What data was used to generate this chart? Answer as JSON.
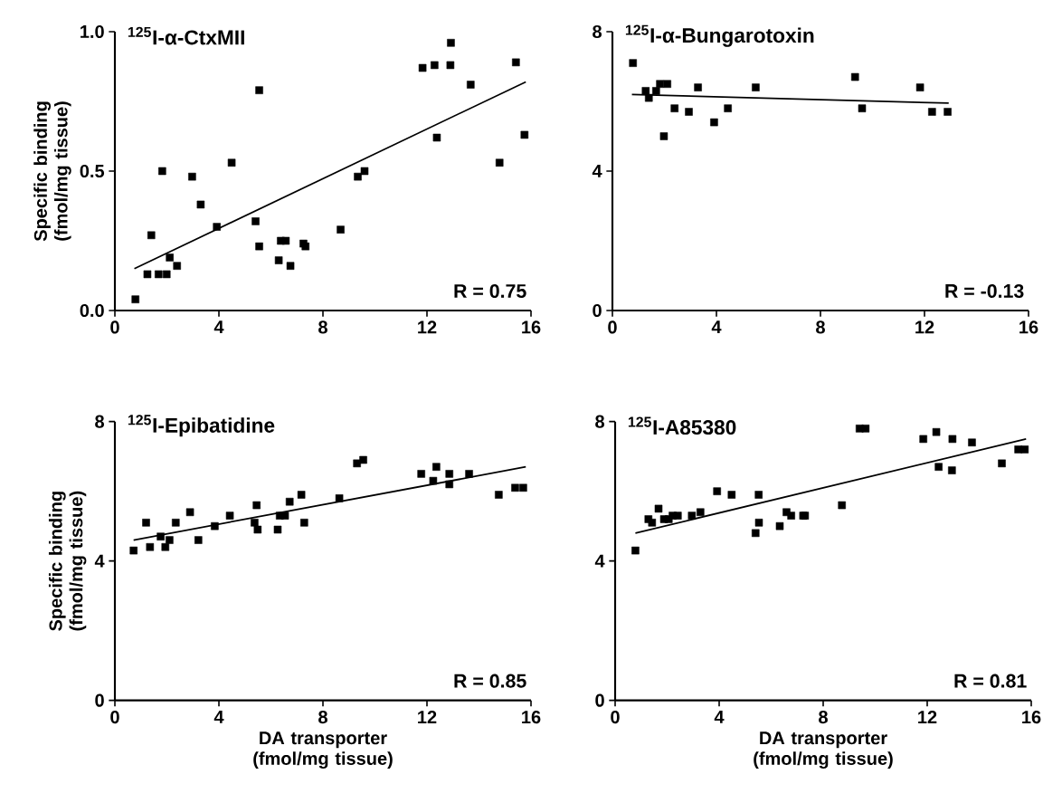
{
  "chart_data": [
    {
      "type": "scatter",
      "title": "$^{125}$I-α-CtxMII",
      "ylabel": "Specific binding (fmol/mg tissue)",
      "annotations": [
        "R = 0.75"
      ],
      "xlim": [
        0,
        16
      ],
      "xticks": [
        0,
        4,
        8,
        12,
        16
      ],
      "ylim": [
        0,
        1
      ],
      "yticks": [
        {
          "value": 0,
          "label": "0.0"
        },
        {
          "value": 0.5,
          "label": "0.5"
        },
        {
          "value": 1,
          "label": "1.0"
        }
      ],
      "series": [
        {
          "marker": "square",
          "color": "#000000",
          "x": [
            0.79,
            1.25,
            1.4,
            1.68,
            1.99,
            1.82,
            2.11,
            2.39,
            2.97,
            3.3,
            3.92,
            4.49,
            5.41,
            5.55,
            5.55,
            6.3,
            6.38,
            6.57,
            6.75,
            7.25,
            7.33,
            8.68,
            9.34,
            9.6,
            11.83,
            12.29,
            12.9,
            12.92,
            12.38,
            13.68,
            14.79,
            15.42,
            15.75
          ],
          "values": [
            0.04,
            0.13,
            0.27,
            0.13,
            0.13,
            0.5,
            0.19,
            0.16,
            0.48,
            0.38,
            0.3,
            0.53,
            0.32,
            0.23,
            0.79,
            0.18,
            0.25,
            0.25,
            0.16,
            0.24,
            0.23,
            0.29,
            0.48,
            0.5,
            0.87,
            0.88,
            0.88,
            0.96,
            0.62,
            0.81,
            0.53,
            0.89,
            0.63
          ]
        },
        {
          "type": "line",
          "marker": "none",
          "color": "#000000",
          "x": [
            0.75,
            15.8
          ],
          "values": [
            0.15,
            0.82
          ]
        }
      ]
    },
    {
      "type": "scatter",
      "title": "$^{125}$I-α-Bungarotoxin",
      "annotations": [
        "R = -0.13"
      ],
      "xlim": [
        0,
        16
      ],
      "xticks": [
        0,
        4,
        8,
        12,
        16
      ],
      "ylim": [
        0,
        8
      ],
      "yticks": [
        0,
        4,
        8
      ],
      "series": [
        {
          "marker": "square",
          "color": "#000000",
          "x": [
            0.79,
            1.28,
            1.4,
            1.68,
            1.83,
            2.11,
            1.98,
            2.39,
            2.94,
            3.29,
            3.91,
            4.44,
            5.51,
            9.33,
            9.6,
            11.83,
            12.29,
            12.89
          ],
          "values": [
            7.1,
            6.3,
            6.1,
            6.3,
            6.5,
            6.5,
            5.0,
            5.8,
            5.7,
            6.4,
            5.4,
            5.8,
            6.4,
            6.7,
            5.8,
            6.4,
            5.7,
            5.7
          ]
        },
        {
          "type": "line",
          "marker": "none",
          "color": "#000000",
          "x": [
            0.75,
            12.93
          ],
          "values": [
            6.2,
            5.95
          ]
        }
      ]
    },
    {
      "type": "scatter",
      "title": "$^{125}$I-Epibatidine",
      "ylabel": "Specific binding (fmol/mg tissue)",
      "xlabel": "DA transporter (fmol/mg tissue)",
      "annotations": [
        "R = 0.85"
      ],
      "xlim": [
        0,
        16
      ],
      "xticks": [
        0,
        4,
        8,
        12,
        16
      ],
      "ylim": [
        0,
        8
      ],
      "yticks": [
        0,
        4,
        8
      ],
      "series": [
        {
          "marker": "square",
          "color": "#000000",
          "x": [
            0.72,
            1.2,
            1.35,
            1.76,
            1.94,
            2.1,
            2.34,
            2.89,
            3.21,
            3.84,
            4.42,
            5.37,
            5.45,
            5.49,
            6.26,
            6.34,
            6.54,
            6.72,
            7.17,
            7.28,
            8.63,
            9.31,
            9.55,
            11.78,
            12.24,
            12.36,
            12.86,
            12.86,
            13.62,
            14.76,
            15.39,
            15.7
          ],
          "values": [
            4.3,
            5.1,
            4.4,
            4.7,
            4.4,
            4.6,
            5.1,
            5.4,
            4.6,
            5.0,
            5.3,
            5.1,
            5.6,
            4.9,
            4.9,
            5.3,
            5.3,
            5.7,
            5.9,
            5.1,
            5.8,
            6.8,
            6.9,
            6.5,
            6.3,
            6.7,
            6.5,
            6.2,
            6.5,
            5.9,
            6.1,
            6.1
          ]
        },
        {
          "type": "line",
          "marker": "none",
          "color": "#000000",
          "x": [
            0.72,
            15.8
          ],
          "values": [
            4.6,
            6.7
          ]
        }
      ]
    },
    {
      "type": "scatter",
      "title": "$^{125}$I-A85380",
      "xlabel": "DA transporter (fmol/mg tissue)",
      "annotations": [
        "R = 0.81"
      ],
      "xlim": [
        0,
        16
      ],
      "xticks": [
        0,
        4,
        8,
        12,
        16
      ],
      "ylim": [
        0,
        8
      ],
      "yticks": [
        0,
        4,
        8
      ],
      "series": [
        {
          "marker": "square",
          "color": "#000000",
          "x": [
            0.78,
            1.28,
            1.42,
            1.67,
            1.88,
            2.06,
            2.21,
            2.41,
            2.95,
            3.28,
            3.92,
            4.48,
            5.4,
            5.52,
            5.53,
            6.33,
            6.59,
            6.77,
            7.23,
            7.3,
            8.72,
            9.4,
            9.63,
            11.85,
            12.35,
            12.44,
            12.97,
            12.95,
            13.72,
            14.87,
            15.5,
            15.75
          ],
          "values": [
            4.3,
            5.2,
            5.1,
            5.5,
            5.2,
            5.2,
            5.3,
            5.3,
            5.3,
            5.4,
            6.0,
            5.9,
            4.8,
            5.9,
            5.1,
            5.0,
            5.4,
            5.3,
            5.3,
            5.3,
            5.6,
            7.8,
            7.8,
            7.5,
            7.7,
            6.7,
            7.5,
            6.6,
            7.4,
            6.8,
            7.2,
            7.2
          ]
        },
        {
          "type": "line",
          "marker": "none",
          "color": "#000000",
          "x": [
            0.78,
            15.8
          ],
          "values": [
            4.8,
            7.5
          ]
        }
      ]
    }
  ]
}
